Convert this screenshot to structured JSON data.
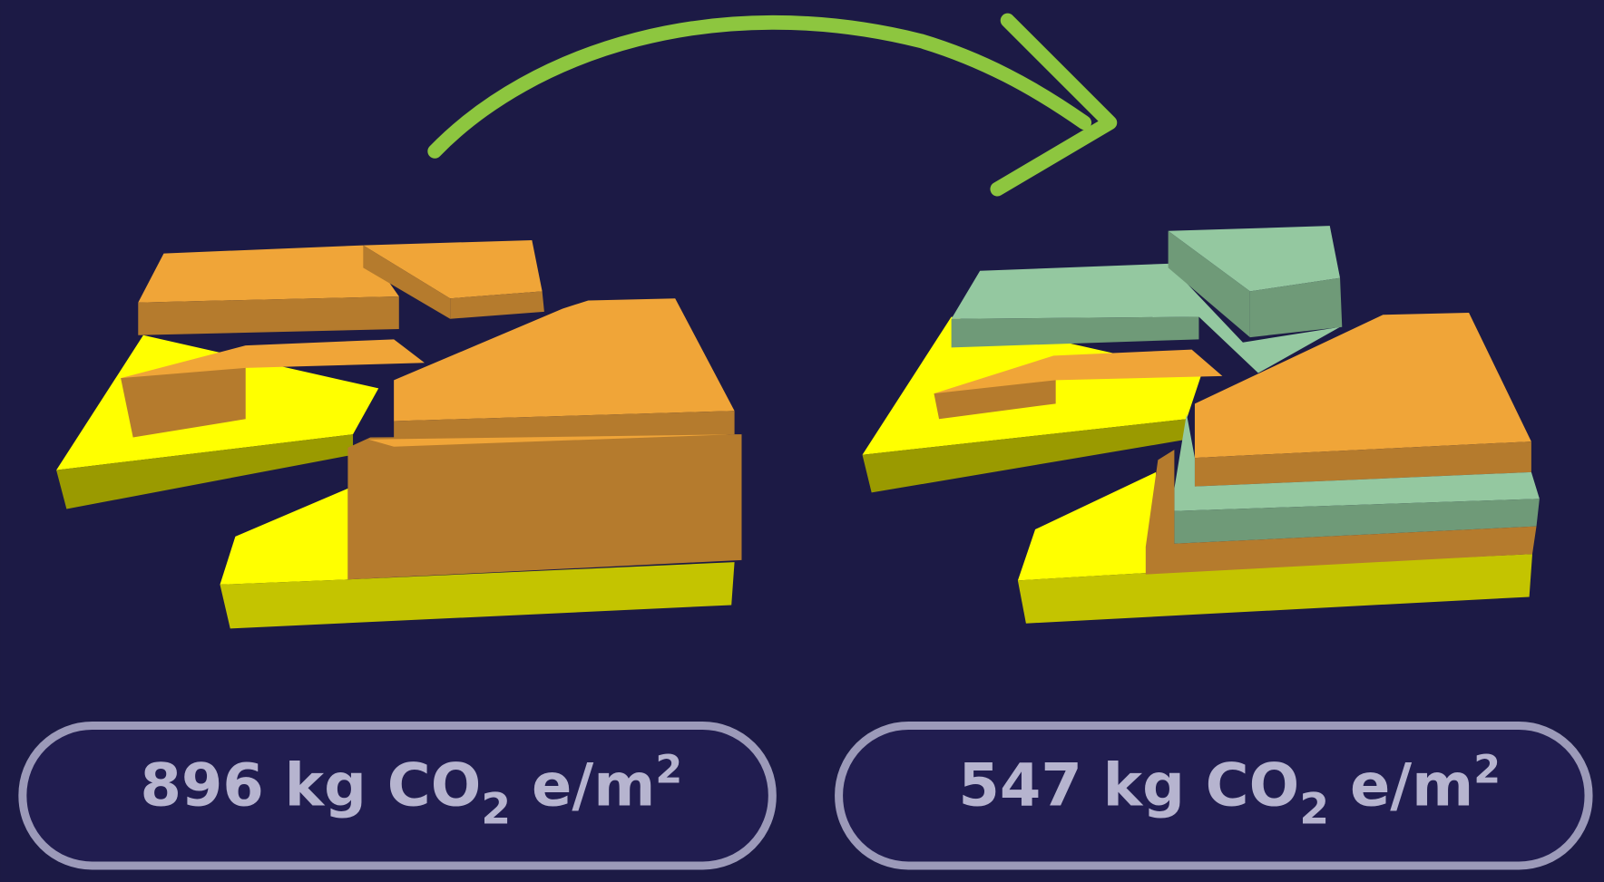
{
  "panels": [
    {
      "value": 896,
      "unit": "kg CO",
      "sub": "2",
      "unit2": "e/m",
      "sup": "2"
    },
    {
      "value": 547,
      "unit": "kg CO",
      "sub": "2",
      "unit2": "e/m",
      "sup": "2"
    }
  ]
}
